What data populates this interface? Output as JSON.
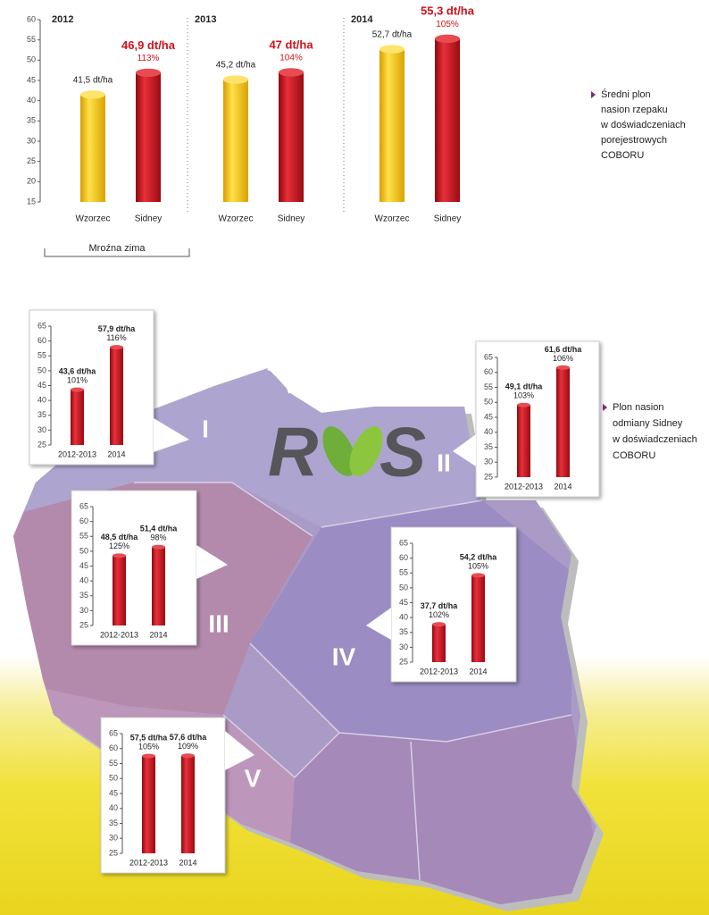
{
  "chart_data": [
    {
      "type": "grouped-bar",
      "ylim": [
        15,
        60
      ],
      "yticks": [
        15,
        20,
        25,
        30,
        35,
        40,
        45,
        50,
        55,
        60
      ],
      "colors": [
        "#f5c400",
        "#d0121b"
      ],
      "series": [
        {
          "name": "2012",
          "categories": [
            "Wzorzec",
            "Sidney"
          ],
          "values": [
            41.5,
            46.9
          ],
          "value_labels": [
            "41,5 dt/ha",
            "46,9 dt/ha"
          ],
          "percent_label": "113%"
        },
        {
          "name": "2013",
          "categories": [
            "Wzorzec",
            "Sidney"
          ],
          "values": [
            45.2,
            47
          ],
          "value_labels": [
            "45,2 dt/ha",
            "47 dt/ha"
          ],
          "percent_label": "104%"
        },
        {
          "name": "2014",
          "categories": [
            "Wzorzec",
            "Sidney"
          ],
          "values": [
            52.7,
            55.3
          ],
          "value_labels": [
            "52,7 dt/ha",
            "55,3 dt/ha"
          ],
          "percent_label": "105%"
        }
      ],
      "annotation": "Mroźna zima",
      "caption": [
        "Średni plon",
        "nasion rzepaku",
        "w doświadczeniach",
        "porejestrowych",
        "COBORU"
      ]
    },
    {
      "type": "bar",
      "region": "I",
      "categories": [
        "2012-2013",
        "2014"
      ],
      "values": [
        43.6,
        57.9
      ],
      "value_labels": [
        "43,6 dt/ha",
        "57,9 dt/ha"
      ],
      "percent_labels": [
        "101%",
        "116%"
      ],
      "color": "#d0121b",
      "ylim": [
        25,
        65
      ],
      "yticks": [
        25,
        30,
        35,
        40,
        45,
        50,
        55,
        60,
        65
      ]
    },
    {
      "type": "bar",
      "region": "II",
      "categories": [
        "2012-2013",
        "2014"
      ],
      "values": [
        49.1,
        61.6
      ],
      "value_labels": [
        "49,1 dt/ha",
        "61,6 dt/ha"
      ],
      "percent_labels": [
        "103%",
        "106%"
      ],
      "color": "#d0121b",
      "ylim": [
        25,
        65
      ],
      "yticks": [
        25,
        30,
        35,
        40,
        45,
        50,
        55,
        60,
        65
      ]
    },
    {
      "type": "bar",
      "region": "III",
      "categories": [
        "2012-2013",
        "2014"
      ],
      "values": [
        48.5,
        51.4
      ],
      "value_labels": [
        "48,5 dt/ha",
        "51,4 dt/ha"
      ],
      "percent_labels": [
        "125%",
        "98%"
      ],
      "color": "#d0121b",
      "ylim": [
        25,
        65
      ],
      "yticks": [
        25,
        30,
        35,
        40,
        45,
        50,
        55,
        60,
        65
      ]
    },
    {
      "type": "bar",
      "region": "IV",
      "categories": [
        "2012-2013",
        "2014"
      ],
      "values": [
        37.7,
        54.2
      ],
      "value_labels": [
        "37,7 dt/ha",
        "54,2 dt/ha"
      ],
      "percent_labels": [
        "102%",
        "105%"
      ],
      "color": "#d0121b",
      "ylim": [
        25,
        65
      ],
      "yticks": [
        25,
        30,
        35,
        40,
        45,
        50,
        55,
        60,
        65
      ]
    },
    {
      "type": "bar",
      "region": "V",
      "categories": [
        "2012-2013",
        "2014"
      ],
      "values": [
        57.5,
        57.6
      ],
      "value_labels": [
        "57,5 dt/ha",
        "57,6 dt/ha"
      ],
      "percent_labels": [
        "105%",
        "109%"
      ],
      "color": "#d0121b",
      "ylim": [
        25,
        65
      ],
      "yticks": [
        25,
        30,
        35,
        40,
        45,
        50,
        55,
        60,
        65
      ]
    }
  ],
  "map_caption": [
    "Plon nasion",
    "odmiany Sidney",
    "w doświadczeniach",
    "COBORU"
  ],
  "logo": [
    "R",
    "S"
  ]
}
